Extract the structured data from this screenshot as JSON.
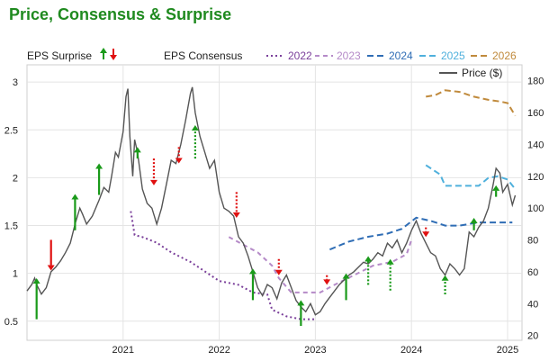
{
  "page_title": "Price, Consensus & Surprise",
  "chart_data": {
    "type": "line",
    "title": "Price, Consensus & Surprise",
    "legend": {
      "surprise_label": "EPS Surprise",
      "consensus_label": "EPS Consensus",
      "price_label": "Price ($)",
      "placement": "top"
    },
    "x_axis": {
      "ticks": [
        "2021",
        "2022",
        "2023",
        "2024",
        "2025"
      ],
      "range": [
        2020.0,
        2025.15
      ]
    },
    "y_left": {
      "ticks": [
        "0.5",
        "1",
        "1.5",
        "2",
        "2.5",
        "3"
      ],
      "range": [
        0.3,
        3.18
      ]
    },
    "y_right": {
      "label": "Price ($)",
      "ticks": [
        "20",
        "40",
        "60",
        "80",
        "100",
        "120",
        "140",
        "160",
        "180"
      ],
      "range": [
        17,
        190
      ]
    },
    "grid": true,
    "colors": {
      "price": "#555555",
      "up": "#1a9a1a",
      "down": "#e01010",
      "c2022": "#7a3f9a",
      "c2023": "#b58ac8",
      "c2024": "#2f6db5",
      "c2025": "#4fb0dc",
      "c2026": "#c08a3c",
      "title": "#1f8a1f"
    },
    "consensus_series": [
      {
        "name": "2022",
        "color_key": "c2022",
        "dash": "2,3",
        "points": [
          [
            2021.08,
            1.65
          ],
          [
            2021.12,
            1.4
          ],
          [
            2021.2,
            1.38
          ],
          [
            2021.35,
            1.32
          ],
          [
            2021.5,
            1.22
          ],
          [
            2021.7,
            1.12
          ],
          [
            2021.85,
            1.02
          ],
          [
            2022.0,
            0.92
          ],
          [
            2022.2,
            0.88
          ],
          [
            2022.35,
            0.8
          ],
          [
            2022.5,
            0.78
          ],
          [
            2022.55,
            0.62
          ],
          [
            2022.7,
            0.55
          ],
          [
            2022.85,
            0.52
          ],
          [
            2023.0,
            0.52
          ]
        ]
      },
      {
        "name": "2023",
        "color_key": "c2023",
        "dash": "5,4",
        "points": [
          [
            2022.1,
            1.38
          ],
          [
            2022.25,
            1.3
          ],
          [
            2022.4,
            1.22
          ],
          [
            2022.55,
            1.08
          ],
          [
            2022.62,
            0.95
          ],
          [
            2022.75,
            0.8
          ],
          [
            2022.9,
            0.8
          ],
          [
            2023.05,
            0.8
          ],
          [
            2023.2,
            0.88
          ],
          [
            2023.4,
            0.98
          ],
          [
            2023.6,
            1.08
          ],
          [
            2023.8,
            1.12
          ],
          [
            2023.95,
            1.2
          ],
          [
            2024.0,
            1.35
          ]
        ]
      },
      {
        "name": "2024",
        "color_key": "c2024",
        "dash": "7,4",
        "points": [
          [
            2023.15,
            74
          ],
          [
            2023.35,
            79
          ],
          [
            2023.55,
            82
          ],
          [
            2023.75,
            84
          ],
          [
            2023.9,
            87
          ],
          [
            2024.05,
            94
          ],
          [
            2024.2,
            92
          ],
          [
            2024.35,
            89
          ],
          [
            2024.5,
            89
          ],
          [
            2024.7,
            91
          ],
          [
            2024.9,
            91
          ],
          [
            2025.05,
            91
          ]
        ]
      },
      {
        "name": "2025",
        "color_key": "c2025",
        "dash": "7,4",
        "points": [
          [
            2024.15,
            127
          ],
          [
            2024.3,
            121
          ],
          [
            2024.35,
            114
          ],
          [
            2024.5,
            114
          ],
          [
            2024.7,
            114
          ],
          [
            2024.8,
            119
          ],
          [
            2024.9,
            120
          ],
          [
            2025.0,
            118
          ],
          [
            2025.08,
            112
          ]
        ]
      },
      {
        "name": "2026",
        "color_key": "c2026",
        "dash": "7,4",
        "points": [
          [
            2024.15,
            170
          ],
          [
            2024.25,
            171
          ],
          [
            2024.35,
            174
          ],
          [
            2024.5,
            173
          ],
          [
            2024.65,
            170
          ],
          [
            2024.8,
            168
          ],
          [
            2024.92,
            167
          ],
          [
            2025.0,
            166
          ],
          [
            2025.08,
            158
          ]
        ]
      }
    ],
    "price_series": {
      "name": "Price ($)",
      "points": [
        [
          2020.0,
          48
        ],
        [
          2020.05,
          52
        ],
        [
          2020.08,
          56
        ],
        [
          2020.1,
          52
        ],
        [
          2020.15,
          46
        ],
        [
          2020.2,
          50
        ],
        [
          2020.25,
          60
        ],
        [
          2020.3,
          63
        ],
        [
          2020.35,
          67
        ],
        [
          2020.4,
          72
        ],
        [
          2020.45,
          78
        ],
        [
          2020.5,
          90
        ],
        [
          2020.55,
          100
        ],
        [
          2020.58,
          96
        ],
        [
          2020.62,
          90
        ],
        [
          2020.68,
          95
        ],
        [
          2020.75,
          105
        ],
        [
          2020.8,
          113
        ],
        [
          2020.85,
          110
        ],
        [
          2020.88,
          120
        ],
        [
          2020.92,
          135
        ],
        [
          2020.95,
          132
        ],
        [
          2021.0,
          148
        ],
        [
          2021.03,
          170
        ],
        [
          2021.05,
          175
        ],
        [
          2021.07,
          145
        ],
        [
          2021.1,
          120
        ],
        [
          2021.12,
          143
        ],
        [
          2021.15,
          135
        ],
        [
          2021.2,
          112
        ],
        [
          2021.25,
          103
        ],
        [
          2021.3,
          100
        ],
        [
          2021.35,
          90
        ],
        [
          2021.4,
          100
        ],
        [
          2021.45,
          115
        ],
        [
          2021.5,
          130
        ],
        [
          2021.55,
          128
        ],
        [
          2021.6,
          140
        ],
        [
          2021.65,
          155
        ],
        [
          2021.7,
          172
        ],
        [
          2021.72,
          176
        ],
        [
          2021.75,
          160
        ],
        [
          2021.8,
          145
        ],
        [
          2021.85,
          135
        ],
        [
          2021.9,
          125
        ],
        [
          2021.95,
          130
        ],
        [
          2022.0,
          110
        ],
        [
          2022.05,
          100
        ],
        [
          2022.1,
          98
        ],
        [
          2022.15,
          95
        ],
        [
          2022.2,
          82
        ],
        [
          2022.25,
          78
        ],
        [
          2022.3,
          70
        ],
        [
          2022.35,
          60
        ],
        [
          2022.4,
          50
        ],
        [
          2022.45,
          45
        ],
        [
          2022.5,
          52
        ],
        [
          2022.55,
          50
        ],
        [
          2022.6,
          43
        ],
        [
          2022.65,
          53
        ],
        [
          2022.7,
          58
        ],
        [
          2022.75,
          50
        ],
        [
          2022.8,
          42
        ],
        [
          2022.85,
          38
        ],
        [
          2022.9,
          35
        ],
        [
          2022.95,
          40
        ],
        [
          2023.0,
          33
        ],
        [
          2023.05,
          35
        ],
        [
          2023.1,
          40
        ],
        [
          2023.15,
          44
        ],
        [
          2023.2,
          48
        ],
        [
          2023.25,
          52
        ],
        [
          2023.3,
          55
        ],
        [
          2023.35,
          58
        ],
        [
          2023.4,
          60
        ],
        [
          2023.45,
          63
        ],
        [
          2023.5,
          66
        ],
        [
          2023.55,
          65
        ],
        [
          2023.6,
          68
        ],
        [
          2023.65,
          72
        ],
        [
          2023.7,
          70
        ],
        [
          2023.75,
          78
        ],
        [
          2023.8,
          75
        ],
        [
          2023.85,
          80
        ],
        [
          2023.9,
          72
        ],
        [
          2023.95,
          78
        ],
        [
          2024.0,
          86
        ],
        [
          2024.05,
          92
        ],
        [
          2024.1,
          84
        ],
        [
          2024.15,
          78
        ],
        [
          2024.2,
          72
        ],
        [
          2024.25,
          70
        ],
        [
          2024.3,
          62
        ],
        [
          2024.35,
          58
        ],
        [
          2024.4,
          65
        ],
        [
          2024.45,
          62
        ],
        [
          2024.5,
          58
        ],
        [
          2024.55,
          62
        ],
        [
          2024.6,
          85
        ],
        [
          2024.65,
          82
        ],
        [
          2024.7,
          88
        ],
        [
          2024.75,
          92
        ],
        [
          2024.8,
          100
        ],
        [
          2024.85,
          115
        ],
        [
          2024.88,
          125
        ],
        [
          2024.92,
          122
        ],
        [
          2024.95,
          110
        ],
        [
          2025.0,
          115
        ],
        [
          2025.05,
          102
        ],
        [
          2025.08,
          108
        ]
      ]
    },
    "surprises": [
      {
        "x": 2020.1,
        "from": 0.52,
        "to": 0.95,
        "dir": "up",
        "style": "solid"
      },
      {
        "x": 2020.25,
        "from": 1.35,
        "to": 1.03,
        "dir": "down",
        "style": "solid"
      },
      {
        "x": 2020.5,
        "from": 1.45,
        "to": 1.83,
        "dir": "up",
        "style": "solid"
      },
      {
        "x": 2020.75,
        "from": 1.82,
        "to": 2.15,
        "dir": "up",
        "style": "solid"
      },
      {
        "x": 2021.15,
        "from": 2.2,
        "to": 2.32,
        "dir": "up",
        "style": "solid"
      },
      {
        "x": 2021.32,
        "from": 2.2,
        "to": 1.92,
        "dir": "down",
        "style": "dotted"
      },
      {
        "x": 2021.58,
        "from": 2.32,
        "to": 2.15,
        "dir": "down",
        "style": "dotted"
      },
      {
        "x": 2021.75,
        "from": 2.2,
        "to": 2.55,
        "dir": "up",
        "style": "dotted"
      },
      {
        "x": 2022.18,
        "from": 1.85,
        "to": 1.58,
        "dir": "down",
        "style": "dotted"
      },
      {
        "x": 2022.35,
        "from": 0.72,
        "to": 1.05,
        "dir": "up",
        "style": "solid"
      },
      {
        "x": 2022.62,
        "from": 1.15,
        "to": 0.98,
        "dir": "down",
        "style": "dotted"
      },
      {
        "x": 2022.85,
        "from": 0.45,
        "to": 0.72,
        "dir": "up",
        "style": "solid"
      },
      {
        "x": 2023.12,
        "from": 0.98,
        "to": 0.88,
        "dir": "down",
        "style": "dotted"
      },
      {
        "x": 2023.32,
        "from": 0.72,
        "to": 1.0,
        "dir": "up",
        "style": "solid"
      },
      {
        "x": 2023.55,
        "from": 0.88,
        "to": 1.18,
        "dir": "up",
        "style": "dotted"
      },
      {
        "x": 2023.78,
        "from": 0.82,
        "to": 1.15,
        "dir": "up",
        "style": "dotted"
      },
      {
        "x": 2024.15,
        "from": 1.48,
        "to": 1.38,
        "dir": "down",
        "style": "dotted"
      },
      {
        "x": 2024.35,
        "from": 0.78,
        "to": 0.98,
        "dir": "up",
        "style": "dotted"
      },
      {
        "x": 2024.65,
        "from": 1.45,
        "to": 1.58,
        "dir": "up",
        "style": "solid"
      },
      {
        "x": 2024.88,
        "from": 1.8,
        "to": 1.92,
        "dir": "up",
        "style": "solid"
      }
    ]
  }
}
